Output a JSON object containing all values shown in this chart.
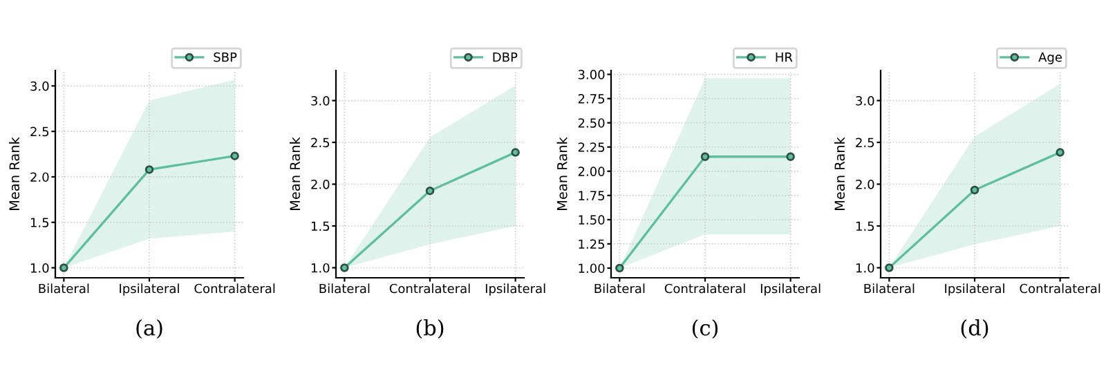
{
  "chart_data": [
    {
      "type": "line",
      "ylabel": "Mean Rank",
      "categories": [
        "Bilateral",
        "Ipsilateral",
        "Contralateral"
      ],
      "ylim": [
        0.89,
        3.17
      ],
      "yticks": [
        {
          "value": 1.0,
          "label": "1.0"
        },
        {
          "value": 1.5,
          "label": "1.5"
        },
        {
          "value": 2.0,
          "label": "2.0"
        },
        {
          "value": 2.5,
          "label": "2.5"
        },
        {
          "value": 3.0,
          "label": "3.0"
        }
      ],
      "grid": true,
      "legend": "top right",
      "marker": "circle",
      "line_style": "solid",
      "annotations": [
        "(a)"
      ],
      "series": [
        {
          "name": "SBP",
          "color": "#5fbf9c",
          "values": [
            1.0,
            2.08,
            2.23
          ],
          "lower": [
            1.0,
            1.32,
            1.4
          ],
          "upper": [
            1.0,
            2.84,
            3.07
          ]
        }
      ]
    },
    {
      "type": "line",
      "ylabel": "Mean Rank",
      "categories": [
        "Bilateral",
        "Contralateral",
        "Ipsilateral"
      ],
      "ylim": [
        0.88,
        3.36
      ],
      "yticks": [
        {
          "value": 1.0,
          "label": "1.0"
        },
        {
          "value": 1.5,
          "label": "1.5"
        },
        {
          "value": 2.0,
          "label": "2.0"
        },
        {
          "value": 2.5,
          "label": "2.5"
        },
        {
          "value": 3.0,
          "label": "3.0"
        }
      ],
      "grid": true,
      "legend": "top right",
      "marker": "circle",
      "line_style": "solid",
      "annotations": [
        "(b)"
      ],
      "series": [
        {
          "name": "DBP",
          "color": "#5fbf9c",
          "values": [
            1.0,
            1.92,
            2.38
          ],
          "lower": [
            1.0,
            1.28,
            1.5
          ],
          "upper": [
            1.0,
            2.56,
            3.18
          ]
        }
      ]
    },
    {
      "type": "line",
      "ylabel": "Mean Rank",
      "categories": [
        "Bilateral",
        "Contralateral",
        "Ipsilateral"
      ],
      "ylim": [
        0.9,
        3.04
      ],
      "yticks": [
        {
          "value": 1.0,
          "label": "1.00"
        },
        {
          "value": 1.25,
          "label": "1.25"
        },
        {
          "value": 1.5,
          "label": "1.50"
        },
        {
          "value": 1.75,
          "label": "1.75"
        },
        {
          "value": 2.0,
          "label": "2.00"
        },
        {
          "value": 2.25,
          "label": "2.25"
        },
        {
          "value": 2.5,
          "label": "2.50"
        },
        {
          "value": 2.75,
          "label": "2.75"
        },
        {
          "value": 3.0,
          "label": "3.00"
        }
      ],
      "grid": true,
      "legend": "top right",
      "marker": "circle",
      "line_style": "solid",
      "annotations": [
        "(c)"
      ],
      "series": [
        {
          "name": "HR",
          "color": "#5fbf9c",
          "values": [
            1.0,
            2.15,
            2.15
          ],
          "lower": [
            1.0,
            1.35,
            1.35
          ],
          "upper": [
            1.0,
            2.96,
            2.96
          ]
        }
      ]
    },
    {
      "type": "line",
      "ylabel": "Mean Rank",
      "categories": [
        "Bilateral",
        "Ipsilateral",
        "Contralateral"
      ],
      "ylim": [
        0.88,
        3.36
      ],
      "yticks": [
        {
          "value": 1.0,
          "label": "1.0"
        },
        {
          "value": 1.5,
          "label": "1.5"
        },
        {
          "value": 2.0,
          "label": "2.0"
        },
        {
          "value": 2.5,
          "label": "2.5"
        },
        {
          "value": 3.0,
          "label": "3.0"
        }
      ],
      "grid": true,
      "legend": "top right",
      "marker": "circle",
      "line_style": "solid",
      "annotations": [
        "(d)"
      ],
      "series": [
        {
          "name": "Age",
          "color": "#5fbf9c",
          "values": [
            1.0,
            1.93,
            2.38
          ],
          "lower": [
            1.0,
            1.28,
            1.5
          ],
          "upper": [
            1.0,
            2.57,
            3.2
          ]
        }
      ]
    }
  ]
}
